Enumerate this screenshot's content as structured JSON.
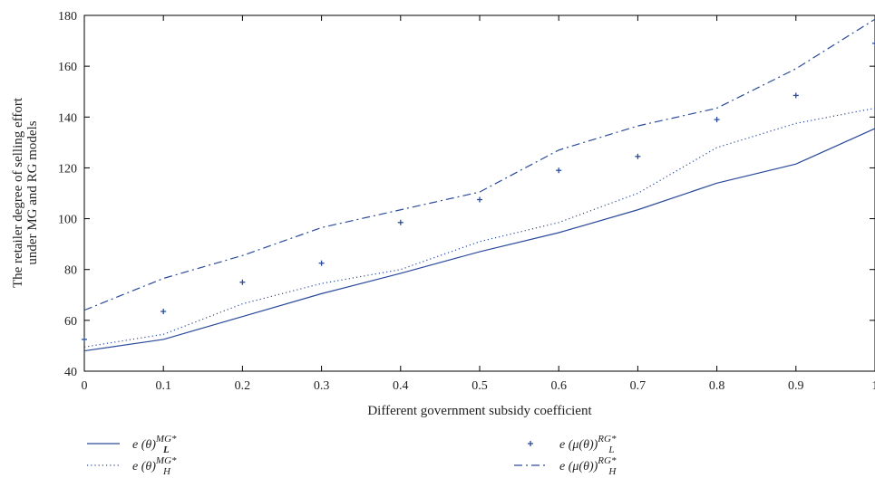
{
  "chart_data": {
    "type": "line",
    "xlabel": "Different government subsidy coefficient",
    "ylabel_line1": "The retailer degree of selling effort",
    "ylabel_line2": "under MG and RG models",
    "xlim": [
      0,
      1
    ],
    "ylim": [
      40,
      180
    ],
    "x_ticks": [
      0,
      0.1,
      0.2,
      0.3,
      0.4,
      0.5,
      0.6,
      0.7,
      0.8,
      0.9,
      1
    ],
    "x_tick_labels": [
      "0",
      "0.1",
      "0.2",
      "0.3",
      "0.4",
      "0.5",
      "0.6",
      "0.7",
      "0.8",
      "0.9",
      "1"
    ],
    "y_ticks": [
      40,
      60,
      80,
      100,
      120,
      140,
      160,
      180
    ],
    "y_tick_labels": [
      "40",
      "60",
      "80",
      "100",
      "120",
      "140",
      "160",
      "180"
    ],
    "grid": false,
    "legend_placement": "bottom",
    "x": [
      0,
      0.1,
      0.2,
      0.3,
      0.4,
      0.5,
      0.6,
      0.7,
      0.8,
      0.9,
      1
    ],
    "series": [
      {
        "legend_base": "e (θ)",
        "legend_sub": "L",
        "legend_sup": "MG*",
        "style": "solid",
        "color": "#2a4a9a",
        "values": [
          48,
          52.5,
          61.5,
          70.5,
          78.5,
          87,
          94.5,
          103.5,
          114,
          121.5,
          135.5
        ]
      },
      {
        "legend_base": "e (θ)",
        "legend_sub": "H",
        "legend_sup": "MG*",
        "style": "dotted",
        "color": "#2a4a9a",
        "values": [
          49.5,
          54.5,
          66.5,
          74.5,
          80,
          91,
          98.5,
          110,
          128,
          137.5,
          143.5
        ]
      },
      {
        "legend_base": "e (μ(θ))",
        "legend_sub": "L",
        "legend_sup": "RG*",
        "style": "plus",
        "color": "#2a4a9a",
        "values": [
          52.5,
          63.5,
          75,
          82.5,
          98.5,
          107.5,
          119,
          124.5,
          139,
          148.5,
          169
        ]
      },
      {
        "legend_base": "e (μ(θ))",
        "legend_sub": "H",
        "legend_sup": "RG*",
        "style": "dashdot",
        "color": "#2a4a9a",
        "values": [
          64,
          76.5,
          85.5,
          96.5,
          103.5,
          110.5,
          127,
          136.5,
          143.5,
          159,
          178.5
        ]
      }
    ]
  }
}
